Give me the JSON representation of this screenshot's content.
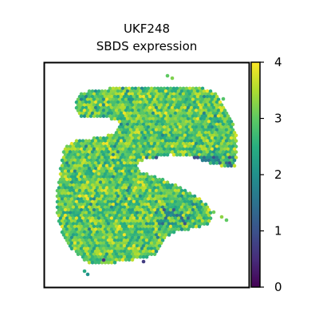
{
  "chart_data": {
    "type": "heatmap",
    "title_line1": "UKF248",
    "title_line2": "SBDS expression",
    "colorbar": {
      "colormap": "viridis",
      "range": [
        0,
        4
      ],
      "ticks": [
        "0",
        "1",
        "2",
        "3",
        "4"
      ]
    },
    "dominant_value_range": [
      2.3,
      3.6
    ],
    "frame": {
      "axes_visible": false
    }
  }
}
